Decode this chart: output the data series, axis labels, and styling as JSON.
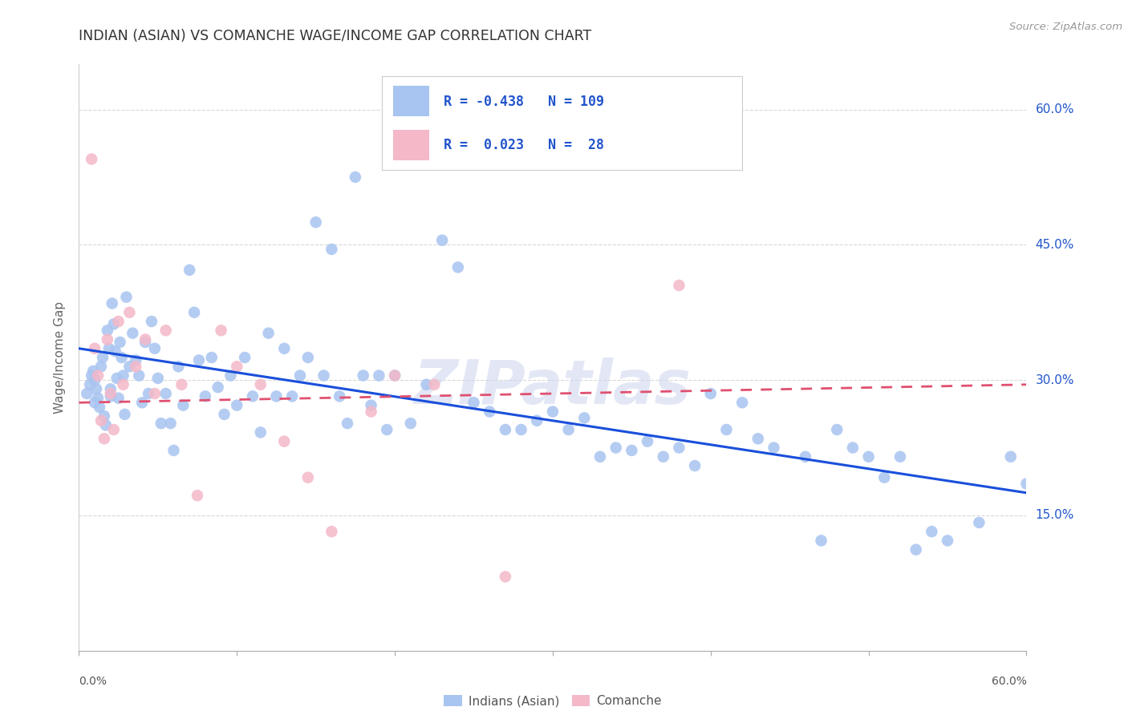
{
  "title": "INDIAN (ASIAN) VS COMANCHE WAGE/INCOME GAP CORRELATION CHART",
  "source": "Source: ZipAtlas.com",
  "ylabel": "Wage/Income Gap",
  "xlim": [
    0.0,
    0.6
  ],
  "ylim": [
    0.0,
    0.65
  ],
  "ytick_labels": [
    "15.0%",
    "30.0%",
    "45.0%",
    "60.0%"
  ],
  "ytick_vals": [
    0.15,
    0.3,
    0.45,
    0.6
  ],
  "legend_blue_label": "Indians (Asian)",
  "legend_pink_label": "Comanche",
  "R_blue": -0.438,
  "N_blue": 109,
  "R_pink": 0.023,
  "N_pink": 28,
  "blue_dot_color": "#a8c4f0",
  "pink_dot_color": "#f4b8c8",
  "blue_line_color": "#1a4fdb",
  "pink_line_color": "#e05070",
  "legend_text_color": "#2255cc",
  "title_color": "#333333",
  "watermark": "ZIPatlas",
  "blue_x": [
    0.005,
    0.007,
    0.008,
    0.009,
    0.01,
    0.01,
    0.011,
    0.012,
    0.013,
    0.014,
    0.015,
    0.016,
    0.017,
    0.018,
    0.019,
    0.02,
    0.02,
    0.021,
    0.022,
    0.023,
    0.024,
    0.025,
    0.026,
    0.027,
    0.028,
    0.029,
    0.03,
    0.032,
    0.034,
    0.036,
    0.038,
    0.04,
    0.042,
    0.044,
    0.046,
    0.048,
    0.05,
    0.052,
    0.055,
    0.058,
    0.06,
    0.063,
    0.066,
    0.07,
    0.073,
    0.076,
    0.08,
    0.084,
    0.088,
    0.092,
    0.096,
    0.1,
    0.105,
    0.11,
    0.115,
    0.12,
    0.125,
    0.13,
    0.135,
    0.14,
    0.145,
    0.15,
    0.155,
    0.16,
    0.165,
    0.17,
    0.175,
    0.18,
    0.185,
    0.19,
    0.195,
    0.2,
    0.21,
    0.22,
    0.23,
    0.24,
    0.25,
    0.26,
    0.27,
    0.28,
    0.29,
    0.3,
    0.31,
    0.32,
    0.33,
    0.34,
    0.35,
    0.36,
    0.37,
    0.38,
    0.39,
    0.4,
    0.41,
    0.42,
    0.43,
    0.44,
    0.46,
    0.47,
    0.48,
    0.49,
    0.5,
    0.51,
    0.52,
    0.53,
    0.54,
    0.55,
    0.57,
    0.59,
    0.6
  ],
  "blue_y": [
    0.285,
    0.295,
    0.305,
    0.31,
    0.275,
    0.3,
    0.29,
    0.28,
    0.27,
    0.315,
    0.325,
    0.26,
    0.25,
    0.355,
    0.335,
    0.29,
    0.282,
    0.385,
    0.362,
    0.332,
    0.302,
    0.28,
    0.342,
    0.325,
    0.305,
    0.262,
    0.392,
    0.315,
    0.352,
    0.322,
    0.305,
    0.275,
    0.342,
    0.285,
    0.365,
    0.335,
    0.302,
    0.252,
    0.285,
    0.252,
    0.222,
    0.315,
    0.272,
    0.422,
    0.375,
    0.322,
    0.282,
    0.325,
    0.292,
    0.262,
    0.305,
    0.272,
    0.325,
    0.282,
    0.242,
    0.352,
    0.282,
    0.335,
    0.282,
    0.305,
    0.325,
    0.475,
    0.305,
    0.445,
    0.282,
    0.252,
    0.525,
    0.305,
    0.272,
    0.305,
    0.245,
    0.305,
    0.252,
    0.295,
    0.455,
    0.425,
    0.275,
    0.265,
    0.245,
    0.245,
    0.255,
    0.265,
    0.245,
    0.258,
    0.215,
    0.225,
    0.222,
    0.232,
    0.215,
    0.225,
    0.205,
    0.285,
    0.245,
    0.275,
    0.235,
    0.225,
    0.215,
    0.122,
    0.245,
    0.225,
    0.215,
    0.192,
    0.215,
    0.112,
    0.132,
    0.122,
    0.142,
    0.215,
    0.185
  ],
  "pink_x": [
    0.008,
    0.01,
    0.012,
    0.014,
    0.016,
    0.018,
    0.02,
    0.022,
    0.025,
    0.028,
    0.032,
    0.036,
    0.042,
    0.048,
    0.055,
    0.065,
    0.075,
    0.09,
    0.1,
    0.115,
    0.13,
    0.145,
    0.16,
    0.185,
    0.2,
    0.225,
    0.27,
    0.38
  ],
  "pink_y": [
    0.545,
    0.335,
    0.305,
    0.255,
    0.235,
    0.345,
    0.285,
    0.245,
    0.365,
    0.295,
    0.375,
    0.315,
    0.345,
    0.285,
    0.355,
    0.295,
    0.172,
    0.355,
    0.315,
    0.295,
    0.232,
    0.192,
    0.132,
    0.265,
    0.305,
    0.295,
    0.082,
    0.405
  ]
}
